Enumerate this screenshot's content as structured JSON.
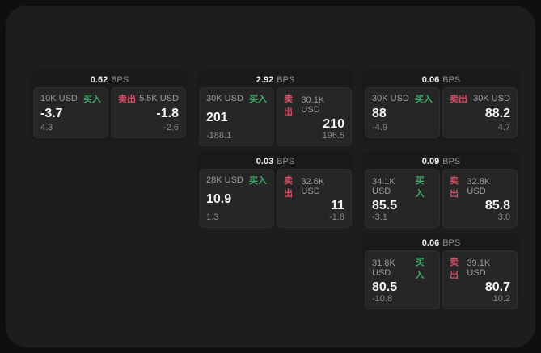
{
  "colors": {
    "page_background": "#0f0f10",
    "panel_background": "#1d1d1e",
    "card_background": "#1a1a1b",
    "tile_background": "#262627",
    "buy_green": "#3da868",
    "sell_red": "#d25165",
    "value_white": "#f5f5f5",
    "label_gray": "#9c9c9c"
  },
  "cards": [
    {
      "bps_value": "0.62",
      "bps_unit": "BPS",
      "buy": {
        "amount": "10K USD",
        "side": "买入",
        "value": "-3.7",
        "sub": "4.3"
      },
      "sell": {
        "amount": "5.5K USD",
        "side": "卖出",
        "value": "-1.8",
        "sub": "-2.6"
      }
    },
    {
      "bps_value": "2.92",
      "bps_unit": "BPS",
      "buy": {
        "amount": "30K USD",
        "side": "买入",
        "value": "201",
        "sub": "-188.1"
      },
      "sell": {
        "amount": "30.1K USD",
        "side": "卖出",
        "value": "210",
        "sub": "196.5"
      }
    },
    {
      "bps_value": "0.06",
      "bps_unit": "BPS",
      "buy": {
        "amount": "30K USD",
        "side": "买入",
        "value": "88",
        "sub": "-4.9"
      },
      "sell": {
        "amount": "30K USD",
        "side": "卖出",
        "value": "88.2",
        "sub": "4.7"
      }
    },
    {
      "bps_value": "0.03",
      "bps_unit": "BPS",
      "buy": {
        "amount": "28K USD",
        "side": "买入",
        "value": "10.9",
        "sub": "1.3"
      },
      "sell": {
        "amount": "32.6K USD",
        "side": "卖出",
        "value": "11",
        "sub": "-1.8"
      }
    },
    {
      "bps_value": "0.09",
      "bps_unit": "BPS",
      "buy": {
        "amount": "34.1K USD",
        "side": "买入",
        "value": "85.5",
        "sub": "-3.1"
      },
      "sell": {
        "amount": "32.8K USD",
        "side": "卖出",
        "value": "85.8",
        "sub": "3.0"
      }
    },
    {
      "bps_value": "0.06",
      "bps_unit": "BPS",
      "buy": {
        "amount": "31.8K USD",
        "side": "买入",
        "value": "80.5",
        "sub": "-10.8"
      },
      "sell": {
        "amount": "39.1K USD",
        "side": "卖出",
        "value": "80.7",
        "sub": "10.2"
      }
    }
  ]
}
